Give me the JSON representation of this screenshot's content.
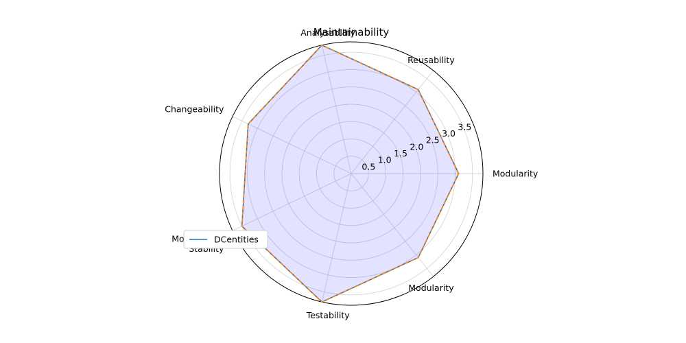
{
  "chart_data": {
    "type": "radar",
    "title": "Maintainability",
    "categories": [
      "Modularity",
      "Reusability",
      "Analysability",
      "Changeability",
      "Modification\nStability",
      "Testability",
      "Modularity"
    ],
    "rticks": [
      "0.5",
      "1.0",
      "1.5",
      "2.0",
      "2.5",
      "3.0",
      "3.5"
    ],
    "rtick_values": [
      0.5,
      1.0,
      1.5,
      2.0,
      2.5,
      3.0,
      3.5
    ],
    "rlim": [
      0,
      3.8
    ],
    "grid": true,
    "legend_position": "lower-left",
    "series": [
      {
        "name": "DCentities",
        "values": [
          3.1,
          3.1,
          3.8,
          3.3,
          3.5,
          3.8,
          3.1
        ],
        "color": "#1f77b4",
        "style": "solid"
      },
      {
        "values": [
          3.1,
          3.1,
          3.8,
          3.3,
          3.5,
          3.8,
          3.1
        ],
        "color": "#ff7f0e",
        "style": "dashed"
      }
    ],
    "fill_color": "#0000ff",
    "fill_opacity": 0.11
  }
}
